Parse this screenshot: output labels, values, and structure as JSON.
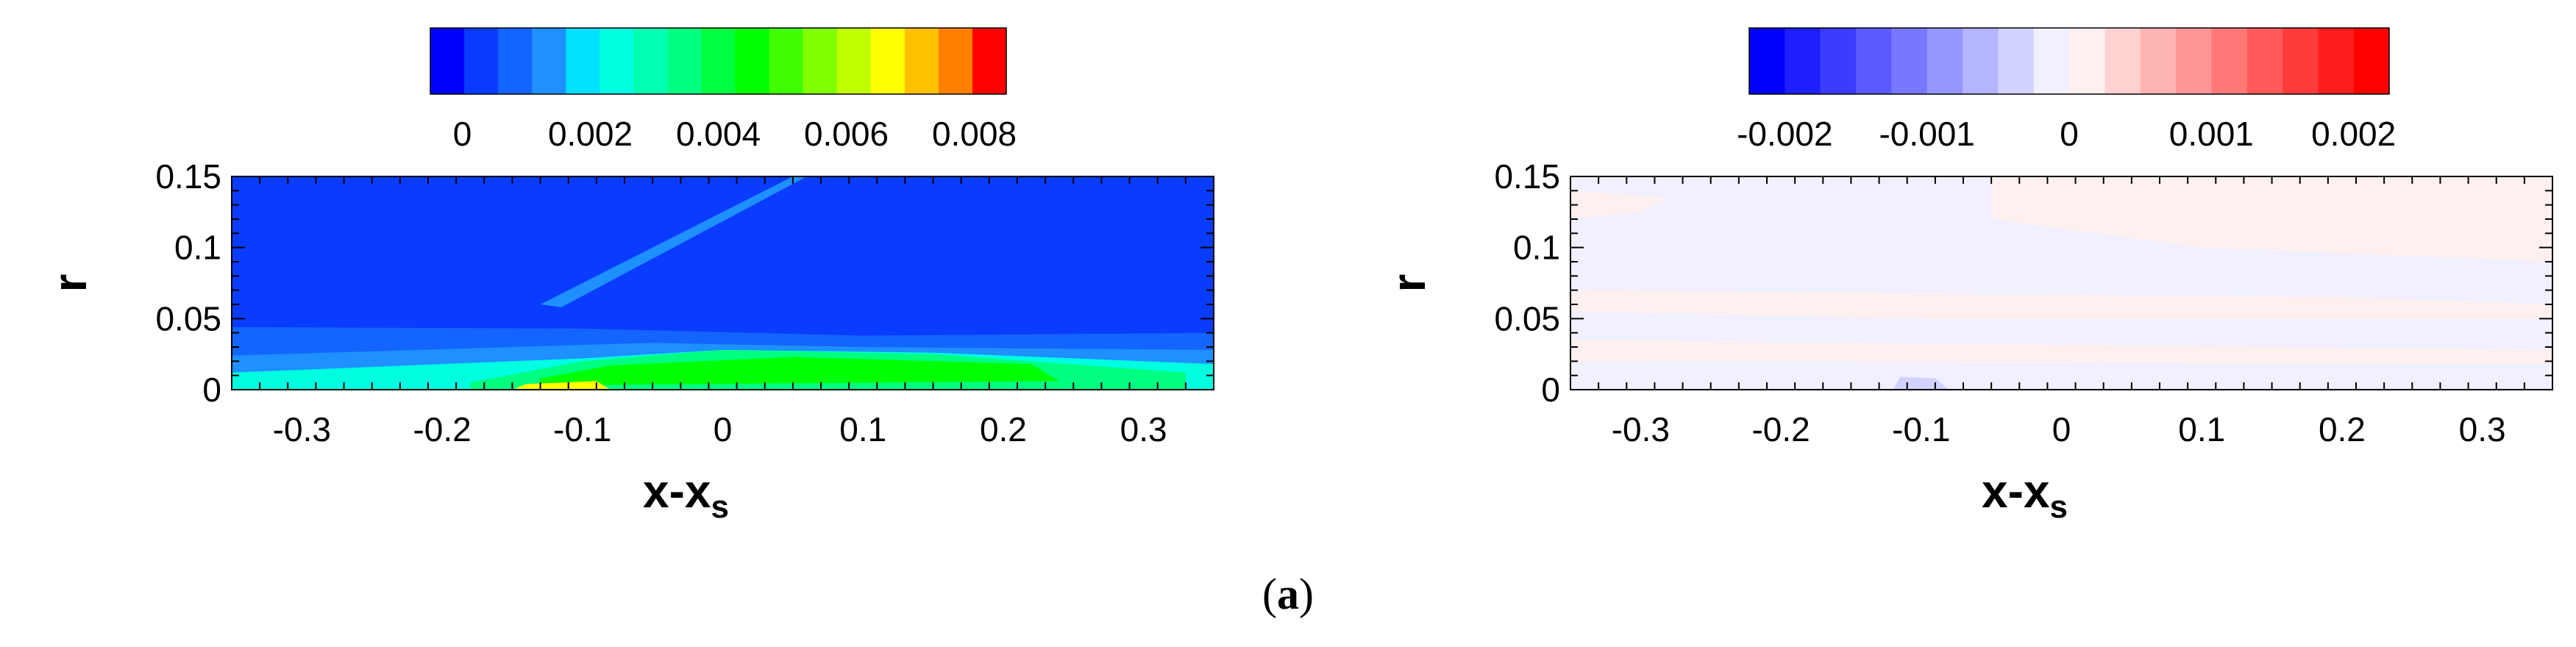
{
  "figure": {
    "caption": "(a)",
    "caption_parts": {
      "open": "(",
      "letter": "a",
      "close": ")"
    }
  },
  "chart_data": [
    {
      "type": "heatmap",
      "title": "",
      "xlabel": "x-x",
      "xlabel_subscript": "s",
      "ylabel": "r",
      "xlim": [
        -0.35,
        0.35
      ],
      "ylim": [
        0,
        0.15
      ],
      "x_ticks": [
        -0.3,
        -0.2,
        -0.1,
        0,
        0.1,
        0.2,
        0.3
      ],
      "x_tick_labels": [
        "-0.3",
        "-0.2",
        "-0.1",
        "0",
        "0.1",
        "0.2",
        "0.3"
      ],
      "y_ticks": [
        0,
        0.05,
        0.1,
        0.15
      ],
      "y_tick_labels": [
        "0",
        "0.05",
        "0.1",
        "0.15"
      ],
      "colorbar": {
        "placement": "top",
        "range": [
          -0.0005,
          0.0085
        ],
        "levels": 17,
        "colors": [
          "#0000ff",
          "#0a3cff",
          "#1464ff",
          "#1e90ff",
          "#00e0ff",
          "#00ffe0",
          "#00ffb0",
          "#00ff80",
          "#00ff40",
          "#00ff00",
          "#40ff00",
          "#80ff00",
          "#c0ff00",
          "#ffff00",
          "#ffc000",
          "#ff8000",
          "#ff0000"
        ],
        "ticks": [
          0,
          0.002,
          0.004,
          0.006,
          0.008
        ],
        "tick_labels": [
          "0",
          "0.002",
          "0.004",
          "0.006",
          "0.008"
        ]
      },
      "field_background": "#0a3cff",
      "field_regions": [
        {
          "desc": "near-wall layer",
          "level": 0.0006,
          "points": [
            [
              -0.35,
              0
            ],
            [
              0.35,
              0
            ],
            [
              0.35,
              0.04
            ],
            [
              0.1,
              0.038
            ],
            [
              -0.1,
              0.043
            ],
            [
              -0.35,
              0.044
            ]
          ]
        },
        {
          "desc": "boundary layer band",
          "level": 0.0016,
          "points": [
            [
              -0.35,
              0
            ],
            [
              0.35,
              0
            ],
            [
              0.35,
              0.028
            ],
            [
              0.1,
              0.03
            ],
            [
              -0.05,
              0.033
            ],
            [
              -0.15,
              0.03
            ],
            [
              -0.35,
              0.024
            ]
          ]
        },
        {
          "desc": "inner layer",
          "level": 0.0026,
          "points": [
            [
              -0.35,
              0
            ],
            [
              0.35,
              0
            ],
            [
              0.35,
              0.018
            ],
            [
              0.15,
              0.026
            ],
            [
              0,
              0.028
            ],
            [
              -0.1,
              0.022
            ],
            [
              -0.35,
              0.012
            ]
          ]
        },
        {
          "desc": "recirculation core",
          "level": 0.0036,
          "points": [
            [
              -0.18,
              0
            ],
            [
              0.33,
              0
            ],
            [
              0.33,
              0.012
            ],
            [
              0.15,
              0.025
            ],
            [
              0.0,
              0.028
            ],
            [
              -0.1,
              0.02
            ],
            [
              -0.18,
              0.005
            ]
          ]
        },
        {
          "desc": "bubble peak",
          "level": 0.0046,
          "points": [
            [
              -0.13,
              0.003
            ],
            [
              0.24,
              0.006
            ],
            [
              0.22,
              0.018
            ],
            [
              0.05,
              0.023
            ],
            [
              -0.08,
              0.017
            ],
            [
              -0.13,
              0.008
            ]
          ]
        },
        {
          "desc": "wall hot spot",
          "level": 0.0066,
          "points": [
            [
              -0.15,
              0.0
            ],
            [
              -0.08,
              0.0
            ],
            [
              -0.09,
              0.006
            ],
            [
              -0.14,
              0.004
            ]
          ]
        },
        {
          "desc": "shock strip",
          "level": 0.0016,
          "points": [
            [
              -0.13,
              0.06
            ],
            [
              0.05,
              0.15
            ],
            [
              0.06,
              0.15
            ],
            [
              -0.115,
              0.058
            ]
          ]
        },
        {
          "desc": "impinging shock low",
          "level": 0.0001,
          "points": [
            [
              -0.28,
              0.15
            ],
            [
              -0.15,
              0.085
            ],
            [
              -0.17,
              0.09
            ],
            [
              -0.27,
              0.15
            ]
          ]
        },
        {
          "desc": "right edge patch",
          "level": 0.0001,
          "points": [
            [
              0.32,
              0.11
            ],
            [
              0.35,
              0.112
            ],
            [
              0.35,
              0.106
            ],
            [
              0.33,
              0.107
            ]
          ]
        }
      ]
    },
    {
      "type": "heatmap",
      "title": "",
      "xlabel": "x-x",
      "xlabel_subscript": "s",
      "ylabel": "r",
      "xlim": [
        -0.35,
        0.35
      ],
      "ylim": [
        0,
        0.15
      ],
      "x_ticks": [
        -0.3,
        -0.2,
        -0.1,
        0,
        0.1,
        0.2,
        0.3
      ],
      "x_tick_labels": [
        "-0.3",
        "-0.2",
        "-0.1",
        "0",
        "0.1",
        "0.2",
        "0.3"
      ],
      "y_ticks": [
        0,
        0.05,
        0.1,
        0.15
      ],
      "y_tick_labels": [
        "0",
        "0.05",
        "0.1",
        "0.15"
      ],
      "colorbar": {
        "placement": "top",
        "range": [
          -0.00225,
          0.00225
        ],
        "levels": 18,
        "colors": [
          "#0000ff",
          "#1e1eff",
          "#3c3cff",
          "#5a5aff",
          "#7878ff",
          "#9696ff",
          "#b4b4ff",
          "#d2d2ff",
          "#f0f0ff",
          "#fff0f0",
          "#ffd2d2",
          "#ffb4b4",
          "#ff9696",
          "#ff7878",
          "#ff5a5a",
          "#ff3c3c",
          "#ff1e1e",
          "#ff0000"
        ],
        "ticks": [
          -0.002,
          -0.001,
          0,
          0.001,
          0.002
        ],
        "tick_labels": [
          "-0.002",
          "-0.001",
          "0",
          "0.001",
          "0.002"
        ]
      },
      "field_background": "#f0f0ff",
      "field_regions": [
        {
          "desc": "upper right positive patch",
          "level": 0.0001,
          "points": [
            [
              -0.05,
              0.15
            ],
            [
              0.35,
              0.15
            ],
            [
              0.35,
              0.09
            ],
            [
              0.1,
              0.1
            ],
            [
              -0.05,
              0.12
            ]
          ]
        },
        {
          "desc": "mid positive band",
          "level": 0.0001,
          "points": [
            [
              -0.35,
              0.07
            ],
            [
              0.2,
              0.065
            ],
            [
              0.35,
              0.06
            ],
            [
              0.35,
              0.05
            ],
            [
              -0.1,
              0.05
            ],
            [
              -0.35,
              0.055
            ]
          ]
        },
        {
          "desc": "upper left positive",
          "level": 0.0001,
          "points": [
            [
              -0.35,
              0.14
            ],
            [
              -0.28,
              0.135
            ],
            [
              -0.3,
              0.125
            ],
            [
              -0.35,
              0.12
            ]
          ]
        },
        {
          "desc": "lower positive band",
          "level": 0.0001,
          "points": [
            [
              -0.35,
              0.035
            ],
            [
              0.35,
              0.028
            ],
            [
              0.35,
              0.018
            ],
            [
              -0.35,
              0.02
            ]
          ]
        },
        {
          "desc": "near-wall negative spot",
          "level": -0.0004,
          "points": [
            [
              -0.12,
              0.0
            ],
            [
              -0.08,
              0.0
            ],
            [
              -0.09,
              0.008
            ],
            [
              -0.115,
              0.009
            ]
          ]
        }
      ]
    }
  ]
}
